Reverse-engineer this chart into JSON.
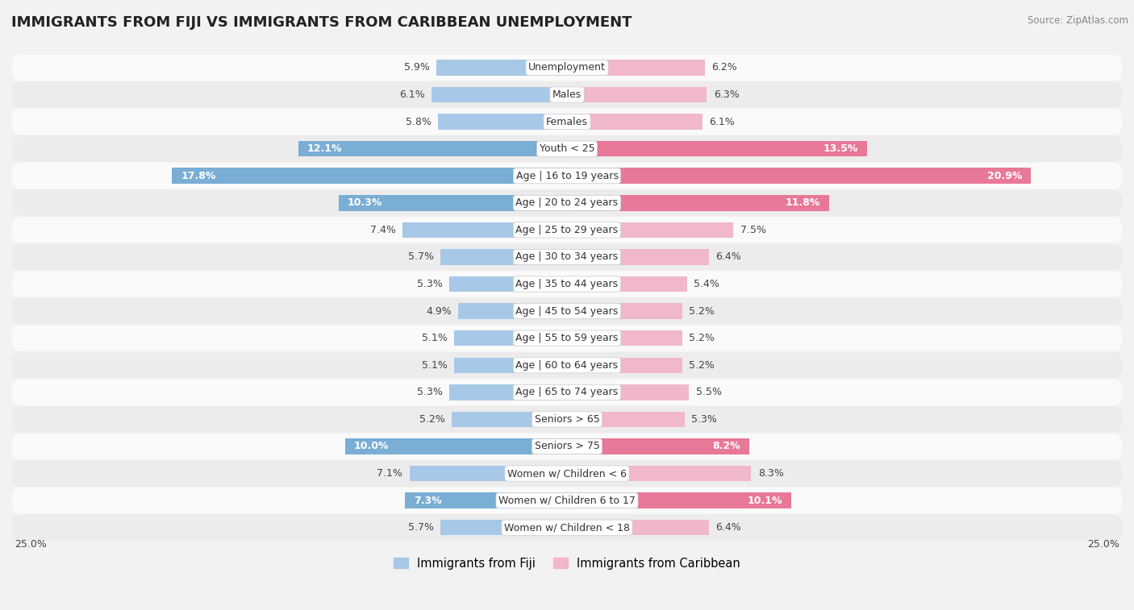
{
  "title": "IMMIGRANTS FROM FIJI VS IMMIGRANTS FROM CARIBBEAN UNEMPLOYMENT",
  "source": "Source: ZipAtlas.com",
  "categories": [
    "Unemployment",
    "Males",
    "Females",
    "Youth < 25",
    "Age | 16 to 19 years",
    "Age | 20 to 24 years",
    "Age | 25 to 29 years",
    "Age | 30 to 34 years",
    "Age | 35 to 44 years",
    "Age | 45 to 54 years",
    "Age | 55 to 59 years",
    "Age | 60 to 64 years",
    "Age | 65 to 74 years",
    "Seniors > 65",
    "Seniors > 75",
    "Women w/ Children < 6",
    "Women w/ Children 6 to 17",
    "Women w/ Children < 18"
  ],
  "fiji_values": [
    5.9,
    6.1,
    5.8,
    12.1,
    17.8,
    10.3,
    7.4,
    5.7,
    5.3,
    4.9,
    5.1,
    5.1,
    5.3,
    5.2,
    10.0,
    7.1,
    7.3,
    5.7
  ],
  "caribbean_values": [
    6.2,
    6.3,
    6.1,
    13.5,
    20.9,
    11.8,
    7.5,
    6.4,
    5.4,
    5.2,
    5.2,
    5.2,
    5.5,
    5.3,
    8.2,
    8.3,
    10.1,
    6.4
  ],
  "fiji_color_normal": "#a8c8e8",
  "fiji_color_highlight": "#7aaed4",
  "caribbean_color_normal": "#f0b8c8",
  "caribbean_color_highlight": "#e87898",
  "highlight_indices": [
    3,
    4,
    5,
    14,
    16
  ],
  "max_val": 25.0,
  "bar_height": 0.58,
  "background_color": "#f2f2f2",
  "row_bg_light": "#fafafa",
  "row_bg_dark": "#ececec",
  "legend_fiji": "Immigrants from Fiji",
  "legend_caribbean": "Immigrants from Caribbean",
  "label_fontsize": 9,
  "title_fontsize": 13,
  "source_fontsize": 8.5
}
